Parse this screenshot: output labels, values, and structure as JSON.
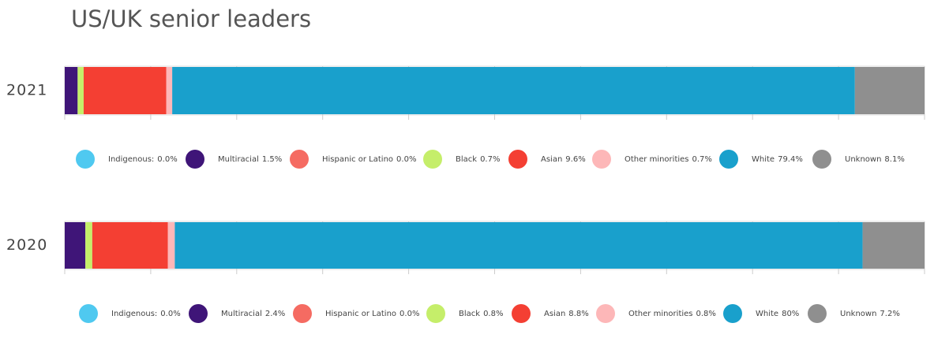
{
  "title": "US/UK senior leaders",
  "chart_data": [
    {
      "type": "bar",
      "orientation": "horizontal",
      "stacked": true,
      "categories": [
        "2021"
      ],
      "xlim": [
        0,
        100
      ],
      "xticks": [
        0,
        10,
        20,
        30,
        40,
        50,
        60,
        70,
        80,
        90,
        100
      ],
      "series": [
        {
          "name": "Indigenous:",
          "color": "#4fc9f0",
          "values": [
            0.0
          ],
          "value_labels": [
            "0.0%"
          ]
        },
        {
          "name": "Multiracial",
          "color": "#3f1578",
          "values": [
            1.5
          ],
          "value_labels": [
            "1.5%"
          ]
        },
        {
          "name": "Hispanic or Latino",
          "color": "#f56b62",
          "values": [
            0.0
          ],
          "value_labels": [
            "0.0%"
          ]
        },
        {
          "name": "Black",
          "color": "#c5ee6a",
          "values": [
            0.7
          ],
          "value_labels": [
            "0.7%"
          ]
        },
        {
          "name": "Asian",
          "color": "#f43f33",
          "values": [
            9.6
          ],
          "value_labels": [
            "9.6%"
          ]
        },
        {
          "name": "Other minorities",
          "color": "#fdb7b8",
          "values": [
            0.7
          ],
          "value_labels": [
            "0.7%"
          ]
        },
        {
          "name": "White",
          "color": "#19a0cc",
          "values": [
            79.4
          ],
          "value_labels": [
            "79.4%"
          ]
        },
        {
          "name": "Unknown",
          "color": "#8f8f8f",
          "values": [
            8.1
          ],
          "value_labels": [
            "8.1%"
          ]
        }
      ]
    },
    {
      "type": "bar",
      "orientation": "horizontal",
      "stacked": true,
      "categories": [
        "2020"
      ],
      "xlim": [
        0,
        100
      ],
      "xticks": [
        0,
        10,
        20,
        30,
        40,
        50,
        60,
        70,
        80,
        90,
        100
      ],
      "series": [
        {
          "name": "Indigenous:",
          "color": "#4fc9f0",
          "values": [
            0.0
          ],
          "value_labels": [
            "0.0%"
          ]
        },
        {
          "name": "Multiracial",
          "color": "#3f1578",
          "values": [
            2.4
          ],
          "value_labels": [
            "2.4%"
          ]
        },
        {
          "name": "Hispanic or Latino",
          "color": "#f56b62",
          "values": [
            0.0
          ],
          "value_labels": [
            "0.0%"
          ]
        },
        {
          "name": "Black",
          "color": "#c5ee6a",
          "values": [
            0.8
          ],
          "value_labels": [
            "0.8%"
          ]
        },
        {
          "name": "Asian",
          "color": "#f43f33",
          "values": [
            8.8
          ],
          "value_labels": [
            "8.8%"
          ]
        },
        {
          "name": "Other minorities",
          "color": "#fdb7b8",
          "values": [
            0.8
          ],
          "value_labels": [
            "0.8%"
          ]
        },
        {
          "name": "White",
          "color": "#19a0cc",
          "values": [
            80
          ],
          "value_labels": [
            "80%"
          ]
        },
        {
          "name": "Unknown",
          "color": "#8f8f8f",
          "values": [
            7.2
          ],
          "value_labels": [
            "7.2%"
          ]
        }
      ]
    }
  ]
}
